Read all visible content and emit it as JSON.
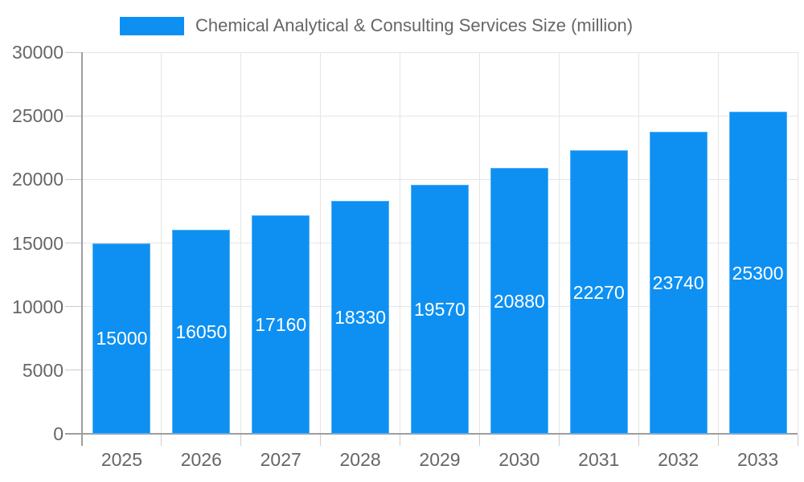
{
  "chart_data": {
    "type": "bar",
    "title": "Chemical Analytical & Consulting Services Size (million)",
    "legend_entries": [
      "Chemical Analytical & Consulting Services Size (million)"
    ],
    "legend_position": "top",
    "categories": [
      "2025",
      "2026",
      "2027",
      "2028",
      "2029",
      "2030",
      "2031",
      "2032",
      "2033"
    ],
    "series": [
      {
        "name": "Chemical Analytical & Consulting Services Size (million)",
        "values": [
          15000,
          16050,
          17160,
          18330,
          19570,
          20880,
          22270,
          23740,
          25300
        ]
      }
    ],
    "data_labels": [
      15000,
      16050,
      17160,
      18330,
      19570,
      20880,
      22270,
      23740,
      25300
    ],
    "xlabel": "",
    "ylabel": "",
    "ylim": [
      0,
      30000
    ],
    "yticks": [
      0,
      5000,
      10000,
      15000,
      20000,
      25000,
      30000
    ],
    "grid": true,
    "colors": {
      "bar_fill": "#0e90f2",
      "bar_edge": "#55b1f6",
      "data_label_text": "#ffffff",
      "axis_text": "#666666",
      "grid_line": "#e5e5e5",
      "tick_line": "#cccccc",
      "axis_line": "#9e9e9e",
      "background": "#ffffff"
    }
  }
}
